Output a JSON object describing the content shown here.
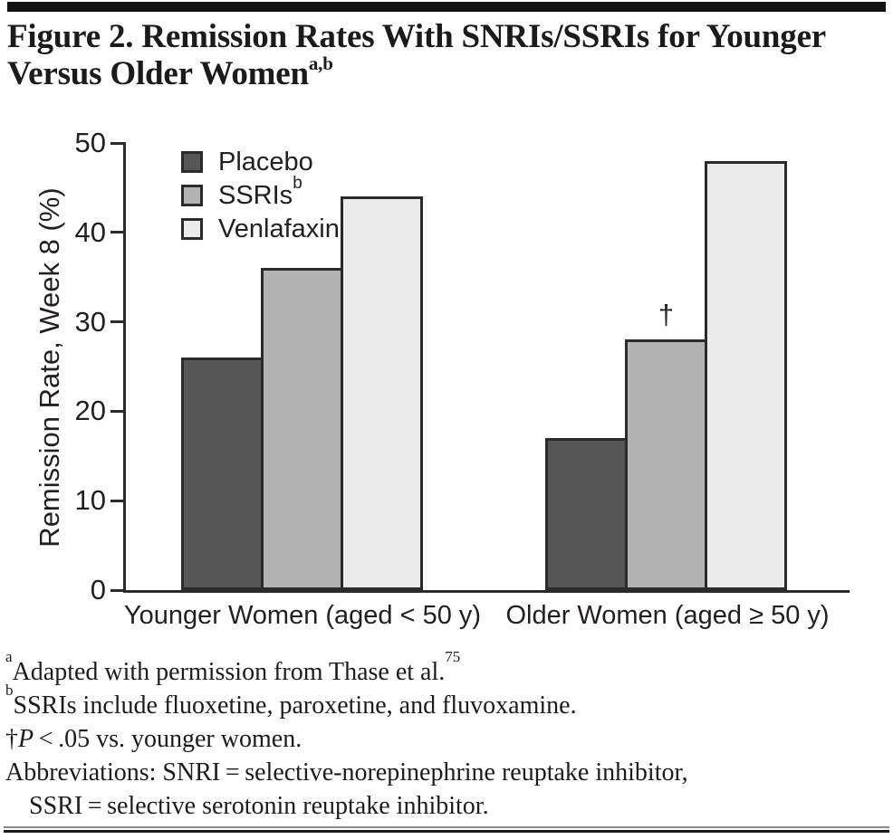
{
  "page": {
    "title_line1": "Figure 2. Remission Rates With SNRIs/SSRIs for Younger",
    "title_line2": "Versus Older Women",
    "title_sup": "a,b"
  },
  "chart_data": {
    "type": "bar",
    "title": "Figure 2. Remission Rates With SNRIs/SSRIs for Younger Versus Older Women",
    "ylabel": "Remission Rate, Week 8 (%)",
    "ylim": [
      0,
      50
    ],
    "yticks": [
      0,
      10,
      20,
      30,
      40,
      50
    ],
    "grid": false,
    "legend_position": "top-left",
    "categories": [
      "Younger Women (aged < 50 y)",
      "Older Women (aged ≥ 50 y)"
    ],
    "series": [
      {
        "name": "Placebo",
        "sup": "",
        "color": "#565656",
        "values": [
          26,
          17
        ]
      },
      {
        "name": "SSRIs",
        "sup": "b",
        "color": "#b3b3b3",
        "values": [
          36,
          28
        ]
      },
      {
        "name": "Venlafaxine",
        "sup": "",
        "color": "#ebebeb",
        "values": [
          44,
          48
        ]
      }
    ],
    "annotations": [
      {
        "text": "†",
        "category_index": 1,
        "series_index": 1
      }
    ]
  },
  "footnotes": {
    "f1_sup": "a",
    "f1_text": "Adapted with permission from Thase et al.",
    "f1_sup_end": "75",
    "f2_sup": "b",
    "f2_text": "SSRIs include fluoxetine, paroxetine, and fluvoxamine.",
    "f3_prefix": "†",
    "f3_italic": "P",
    "f3_text": " < .05 vs. younger women.",
    "f4_text": "Abbreviations: SNRI = selective-norepinephrine reuptake inhibitor,",
    "f5_text": "SSRI = selective serotonin reuptake inhibitor."
  },
  "colors": {
    "axis": "#2b2b2b",
    "bar_border": "#2b2b2b",
    "text": "#231f20",
    "top_bar": "#121212"
  }
}
